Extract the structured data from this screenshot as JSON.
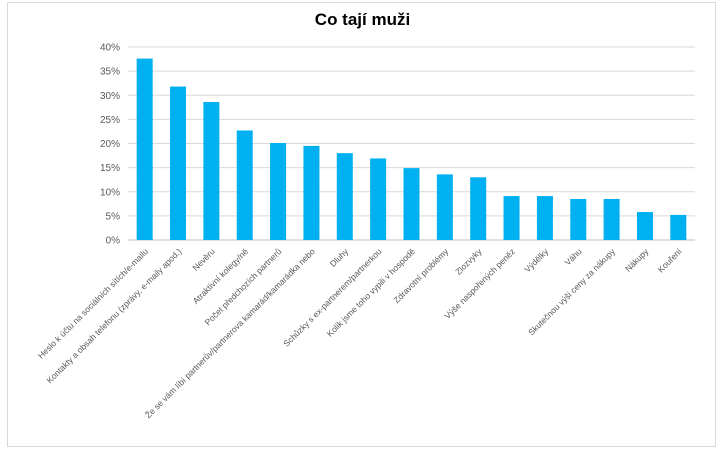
{
  "chart_data": {
    "type": "bar",
    "title": "Co tají muži",
    "categories": [
      "Heslo k účtu na sociálních sítích/e-mailu",
      "Kontakty a obsah telefonu (zprávy, e-maily apod.)",
      "Nevěru",
      "Atraktivní kolegy/ně",
      "Počet předchozích partnerů",
      "Že se vám líbí partnerův/partnerova kamarád/kamarádka nebo",
      "Dluhy",
      "Schůzky s ex-partnerem/partnerkou",
      "Kolik jsme toho vypili v hospodě",
      "Zdravotní problémy",
      "Zlozvyky",
      "Výše naspořených peněz",
      "Výdělky",
      "Váhu",
      "Skutečnou výši ceny za nákupy",
      "Nákupy",
      "Kouření"
    ],
    "values": [
      37.6,
      31.8,
      28.6,
      22.7,
      20.1,
      19.5,
      18.0,
      16.9,
      14.9,
      13.6,
      13.0,
      9.1,
      9.1,
      8.5,
      8.5,
      5.8,
      5.2
    ],
    "unit": "%",
    "ylim": [
      0,
      40
    ],
    "y_ticks": [
      0,
      5,
      10,
      15,
      20,
      25,
      30,
      35,
      40
    ],
    "y_tick_labels": [
      "0%",
      "5%",
      "10%",
      "15%",
      "20%",
      "25%",
      "30%",
      "35%",
      "40%"
    ],
    "xlabel": "",
    "ylabel": "",
    "grid": true,
    "legend": "none",
    "colors": {
      "bar": "#00b0f0",
      "grid": "#d9d9d9",
      "text": "#595959"
    }
  }
}
